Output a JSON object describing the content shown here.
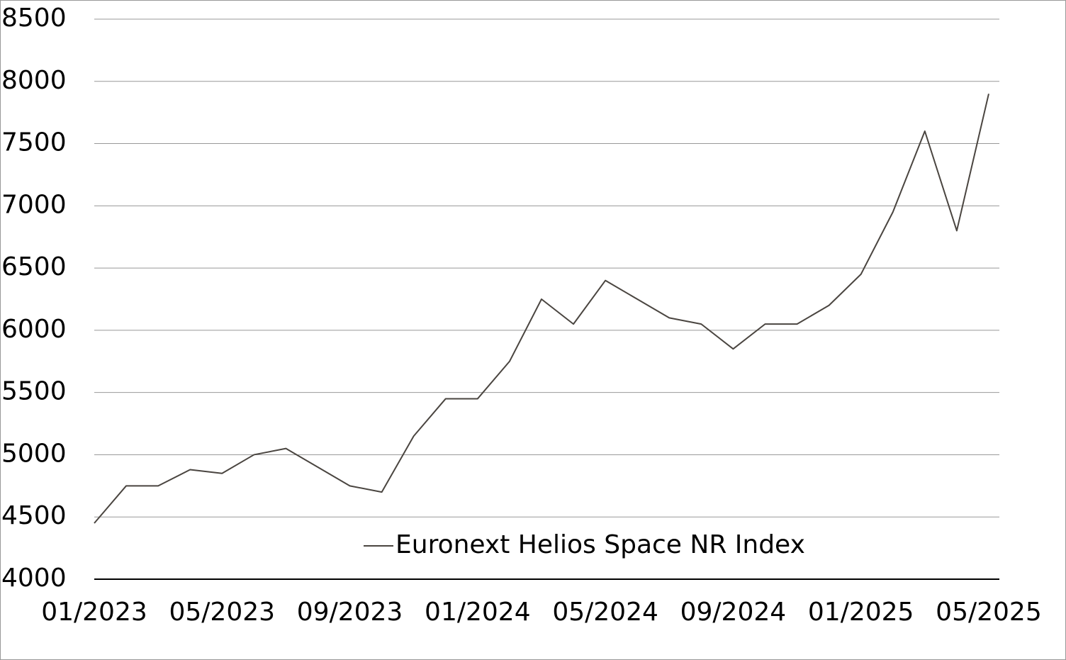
{
  "chart_data": {
    "type": "line",
    "x": [
      "01/2023",
      "02/2023",
      "03/2023",
      "04/2023",
      "05/2023",
      "06/2023",
      "07/2023",
      "08/2023",
      "09/2023",
      "10/2023",
      "11/2023",
      "12/2023",
      "01/2024",
      "02/2024",
      "03/2024",
      "04/2024",
      "05/2024",
      "06/2024",
      "07/2024",
      "08/2024",
      "09/2024",
      "10/2024",
      "11/2024",
      "12/2024",
      "01/2025",
      "02/2025",
      "03/2025",
      "04/2025",
      "05/2025"
    ],
    "series": [
      {
        "name": "Euronext Helios Space NR Index",
        "color": "#4a4540",
        "values": [
          4450,
          4750,
          4750,
          4880,
          4850,
          5000,
          5050,
          4900,
          4750,
          4700,
          5150,
          5450,
          5450,
          5750,
          6250,
          6050,
          6400,
          6250,
          6100,
          6050,
          5850,
          6050,
          6050,
          6200,
          6450,
          6950,
          7600,
          6800,
          7900
        ]
      }
    ],
    "ylim": [
      4000,
      8500
    ],
    "yticks": [
      4000,
      4500,
      5000,
      5500,
      6000,
      6500,
      7000,
      7500,
      8000,
      8500
    ],
    "grid": true,
    "legend": "bottom"
  }
}
